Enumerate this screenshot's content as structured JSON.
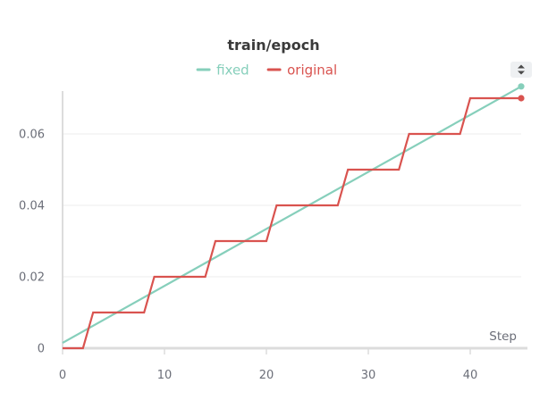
{
  "colors": {
    "fixed": "#86cfbb",
    "original": "#d9534f",
    "title": "#3a3a3a",
    "axis": "#dcdcdc",
    "grid": "#eeeeee",
    "tick": "#6b6e78"
  },
  "controls": {
    "sort_icon": "sort-up-down-icon"
  },
  "chart_data": {
    "type": "line",
    "title": "train/epoch",
    "xlabel": "Step",
    "ylabel": "",
    "xlim": [
      0,
      45
    ],
    "ylim": [
      0,
      0.072
    ],
    "x_ticks": [
      0,
      10,
      20,
      30,
      40
    ],
    "x_tick_labels": [
      "0",
      "10",
      "20",
      "30",
      "40"
    ],
    "y_ticks": [
      0,
      0.02,
      0.04,
      0.06
    ],
    "y_tick_labels": [
      "0",
      "0.02",
      "0.04",
      "0.06"
    ],
    "grid": true,
    "legend": "top-center",
    "series": [
      {
        "name": "fixed",
        "color": "#86cfbb",
        "style": "linear",
        "endpoint_marker": true,
        "x": [
          0,
          45
        ],
        "y": [
          0.0015,
          0.0733
        ]
      },
      {
        "name": "original",
        "color": "#d9534f",
        "style": "staircase",
        "endpoint_marker": true,
        "x": [
          0,
          2,
          3,
          8,
          9,
          14,
          15,
          20,
          21,
          27,
          28,
          33,
          34,
          39,
          40,
          45
        ],
        "y": [
          0,
          0,
          0.01,
          0.01,
          0.02,
          0.02,
          0.03,
          0.03,
          0.04,
          0.04,
          0.05,
          0.05,
          0.06,
          0.06,
          0.07,
          0.07
        ]
      }
    ]
  }
}
